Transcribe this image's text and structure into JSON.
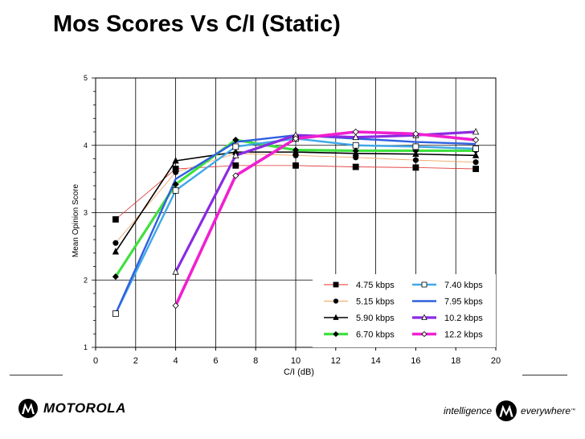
{
  "page": {
    "title": "Mos Scores Vs C/I (Static)"
  },
  "branding": {
    "company": "MOTOROLA",
    "tagline_left": "intelligence",
    "tagline_right": "everywhere",
    "trademark": "™"
  },
  "colors": {
    "frame": "#000000",
    "grid": "#000000"
  },
  "chart_data": {
    "type": "line",
    "title": "",
    "xlabel": "C/I (dB)",
    "ylabel": "Mean Opinion Score",
    "xlim": [
      0,
      20
    ],
    "ylim": [
      1,
      5
    ],
    "xticks": [
      0,
      2,
      4,
      6,
      8,
      10,
      12,
      14,
      16,
      18,
      20
    ],
    "yticks": [
      1,
      2,
      3,
      4,
      5
    ],
    "grid": true,
    "legend_position": "bottom-right",
    "series": [
      {
        "name": "4.75 kbps",
        "color": "#e03030",
        "width": 0.8,
        "marker": "square",
        "x": [
          1,
          4,
          7,
          10,
          13,
          16,
          19
        ],
        "y": [
          2.9,
          3.65,
          3.7,
          3.7,
          3.68,
          3.67,
          3.65
        ]
      },
      {
        "name": "5.15 kbps",
        "color": "#f0a060",
        "width": 0.8,
        "marker": "circle",
        "x": [
          1,
          4,
          7,
          10,
          13,
          16,
          19
        ],
        "y": [
          2.55,
          3.6,
          3.88,
          3.85,
          3.82,
          3.78,
          3.75
        ]
      },
      {
        "name": "5.90 kbps",
        "color": "#000000",
        "width": 1.6,
        "marker": "triangle",
        "x": [
          1,
          4,
          7,
          10,
          13,
          16,
          19
        ],
        "y": [
          2.42,
          3.77,
          3.9,
          3.9,
          3.88,
          3.87,
          3.85
        ]
      },
      {
        "name": "6.70 kbps",
        "color": "#40e040",
        "width": 3.2,
        "marker": "diamond",
        "x": [
          1,
          4,
          7,
          10,
          13,
          16,
          19
        ],
        "y": [
          2.05,
          3.42,
          4.08,
          3.93,
          3.92,
          3.92,
          3.92
        ]
      },
      {
        "name": "7.40 kbps",
        "color": "#40a8e8",
        "width": 2.4,
        "marker": "square-open",
        "x": [
          1,
          4,
          7,
          10,
          13,
          16,
          19
        ],
        "y": [
          1.5,
          3.33,
          3.98,
          4.1,
          4.0,
          3.98,
          3.95
        ]
      },
      {
        "name": "7.95 kbps",
        "color": "#3060e0",
        "width": 2.4,
        "marker": "none",
        "x": [
          1,
          4,
          7,
          10,
          13,
          16,
          19
        ],
        "y": [
          1.5,
          3.5,
          4.05,
          4.15,
          4.1,
          4.05,
          4.02
        ]
      },
      {
        "name": "10.2 kbps",
        "color": "#8a2be2",
        "width": 3.2,
        "marker": "triangle-open",
        "x": [
          4,
          7,
          10,
          13,
          16,
          19
        ],
        "y": [
          2.12,
          3.85,
          4.15,
          4.12,
          4.15,
          4.2
        ]
      },
      {
        "name": "12.2 kbps",
        "color": "#f020d0",
        "width": 3.6,
        "marker": "diamond-open",
        "x": [
          4,
          7,
          10,
          13,
          16,
          19
        ],
        "y": [
          1.62,
          3.55,
          4.1,
          4.2,
          4.17,
          4.08
        ]
      }
    ]
  }
}
